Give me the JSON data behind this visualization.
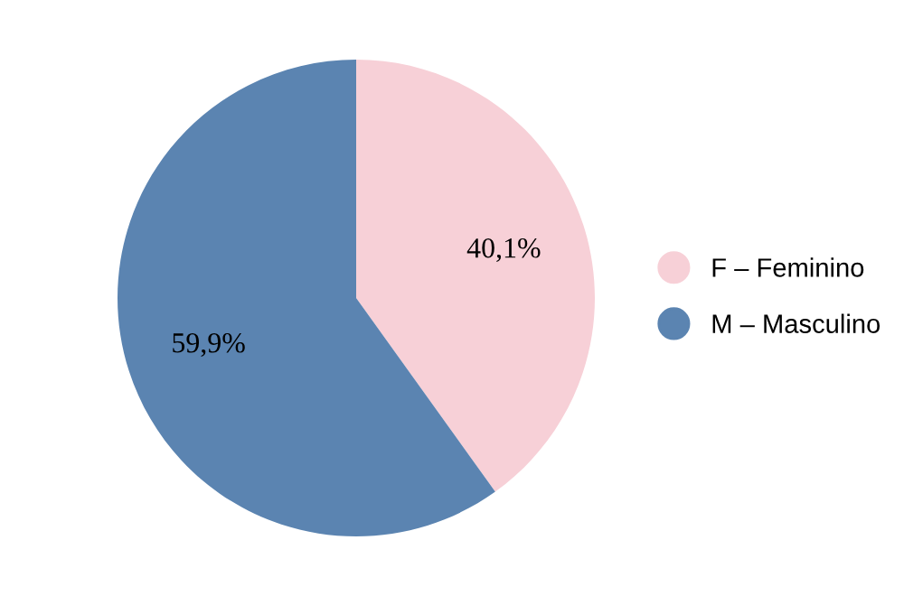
{
  "chart_data": {
    "type": "pie",
    "categories": [
      "F – Feminino",
      "M – Masculino"
    ],
    "values": [
      40.1,
      59.9
    ],
    "colors": [
      "#f7d0d7",
      "#5b84b1"
    ],
    "value_labels": [
      "40,1%",
      "59,9%"
    ],
    "legend": "right"
  }
}
